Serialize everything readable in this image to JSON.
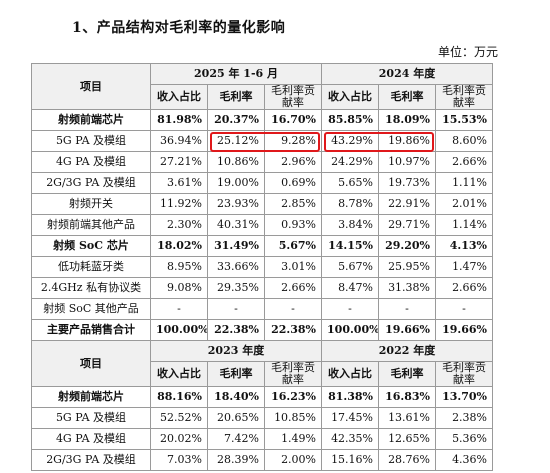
{
  "heading": "1、产品结构对毛利率的量化影响",
  "unit_label": "单位：万元",
  "table1": {
    "item_header": "项目",
    "period_a": "2025 年 1-6 月",
    "period_b": "2024 年度",
    "col_share": "收入占比",
    "col_margin": "毛利率",
    "col_contrib": "毛利率贡献率",
    "rows": [
      {
        "name": "射频前端芯片",
        "bold": true,
        "cells": [
          "81.98%",
          "20.37%",
          "16.70%",
          "85.85%",
          "18.09%",
          "15.53%"
        ]
      },
      {
        "name": "5G PA 及模组",
        "bold": false,
        "cells": [
          "36.94%",
          "25.12%",
          "9.28%",
          "43.29%",
          "19.86%",
          "8.60%"
        ]
      },
      {
        "name": "4G PA 及模组",
        "bold": false,
        "cells": [
          "27.21%",
          "10.86%",
          "2.96%",
          "24.29%",
          "10.97%",
          "2.66%"
        ]
      },
      {
        "name": "2G/3G PA 及模组",
        "bold": false,
        "cells": [
          "3.61%",
          "19.00%",
          "0.69%",
          "5.65%",
          "19.73%",
          "1.11%"
        ]
      },
      {
        "name": "射频开关",
        "bold": false,
        "cells": [
          "11.92%",
          "23.93%",
          "2.85%",
          "8.78%",
          "22.91%",
          "2.01%"
        ]
      },
      {
        "name": "射频前端其他产品",
        "bold": false,
        "cells": [
          "2.30%",
          "40.31%",
          "0.93%",
          "3.84%",
          "29.71%",
          "1.14%"
        ]
      },
      {
        "name": "射频 SoC 芯片",
        "bold": true,
        "cells": [
          "18.02%",
          "31.49%",
          "5.67%",
          "14.15%",
          "29.20%",
          "4.13%"
        ]
      },
      {
        "name": "低功耗蓝牙类",
        "bold": false,
        "cells": [
          "8.95%",
          "33.66%",
          "3.01%",
          "5.67%",
          "25.95%",
          "1.47%"
        ]
      },
      {
        "name": "2.4GHz 私有协议类",
        "bold": false,
        "cells": [
          "9.08%",
          "29.35%",
          "2.66%",
          "8.47%",
          "31.38%",
          "2.66%"
        ]
      },
      {
        "name": "射频 SoC 其他产品",
        "bold": false,
        "cells": [
          "-",
          "-",
          "-",
          "-",
          "-",
          "-"
        ]
      },
      {
        "name": "主要产品销售合计",
        "bold": true,
        "cells": [
          "100.00%",
          "22.38%",
          "22.38%",
          "100.00%",
          "19.66%",
          "19.66%"
        ]
      }
    ]
  },
  "table2": {
    "item_header": "项目",
    "period_a": "2023 年度",
    "period_b": "2022 年度",
    "col_share": "收入占比",
    "col_margin": "毛利率",
    "col_contrib": "毛利率贡献率",
    "rows": [
      {
        "name": "射频前端芯片",
        "bold": true,
        "cells": [
          "88.16%",
          "18.40%",
          "16.23%",
          "81.38%",
          "16.83%",
          "13.70%"
        ]
      },
      {
        "name": "5G PA 及模组",
        "bold": false,
        "cells": [
          "52.52%",
          "20.65%",
          "10.85%",
          "17.45%",
          "13.61%",
          "2.38%"
        ]
      },
      {
        "name": "4G PA 及模组",
        "bold": false,
        "cells": [
          "20.02%",
          "7.42%",
          "1.49%",
          "42.35%",
          "12.65%",
          "5.36%"
        ]
      },
      {
        "name": "2G/3G PA 及模组",
        "bold": false,
        "cells": [
          "7.03%",
          "28.39%",
          "2.00%",
          "15.16%",
          "28.76%",
          "4.36%"
        ]
      }
    ]
  },
  "highlight_color": "#e0181b"
}
